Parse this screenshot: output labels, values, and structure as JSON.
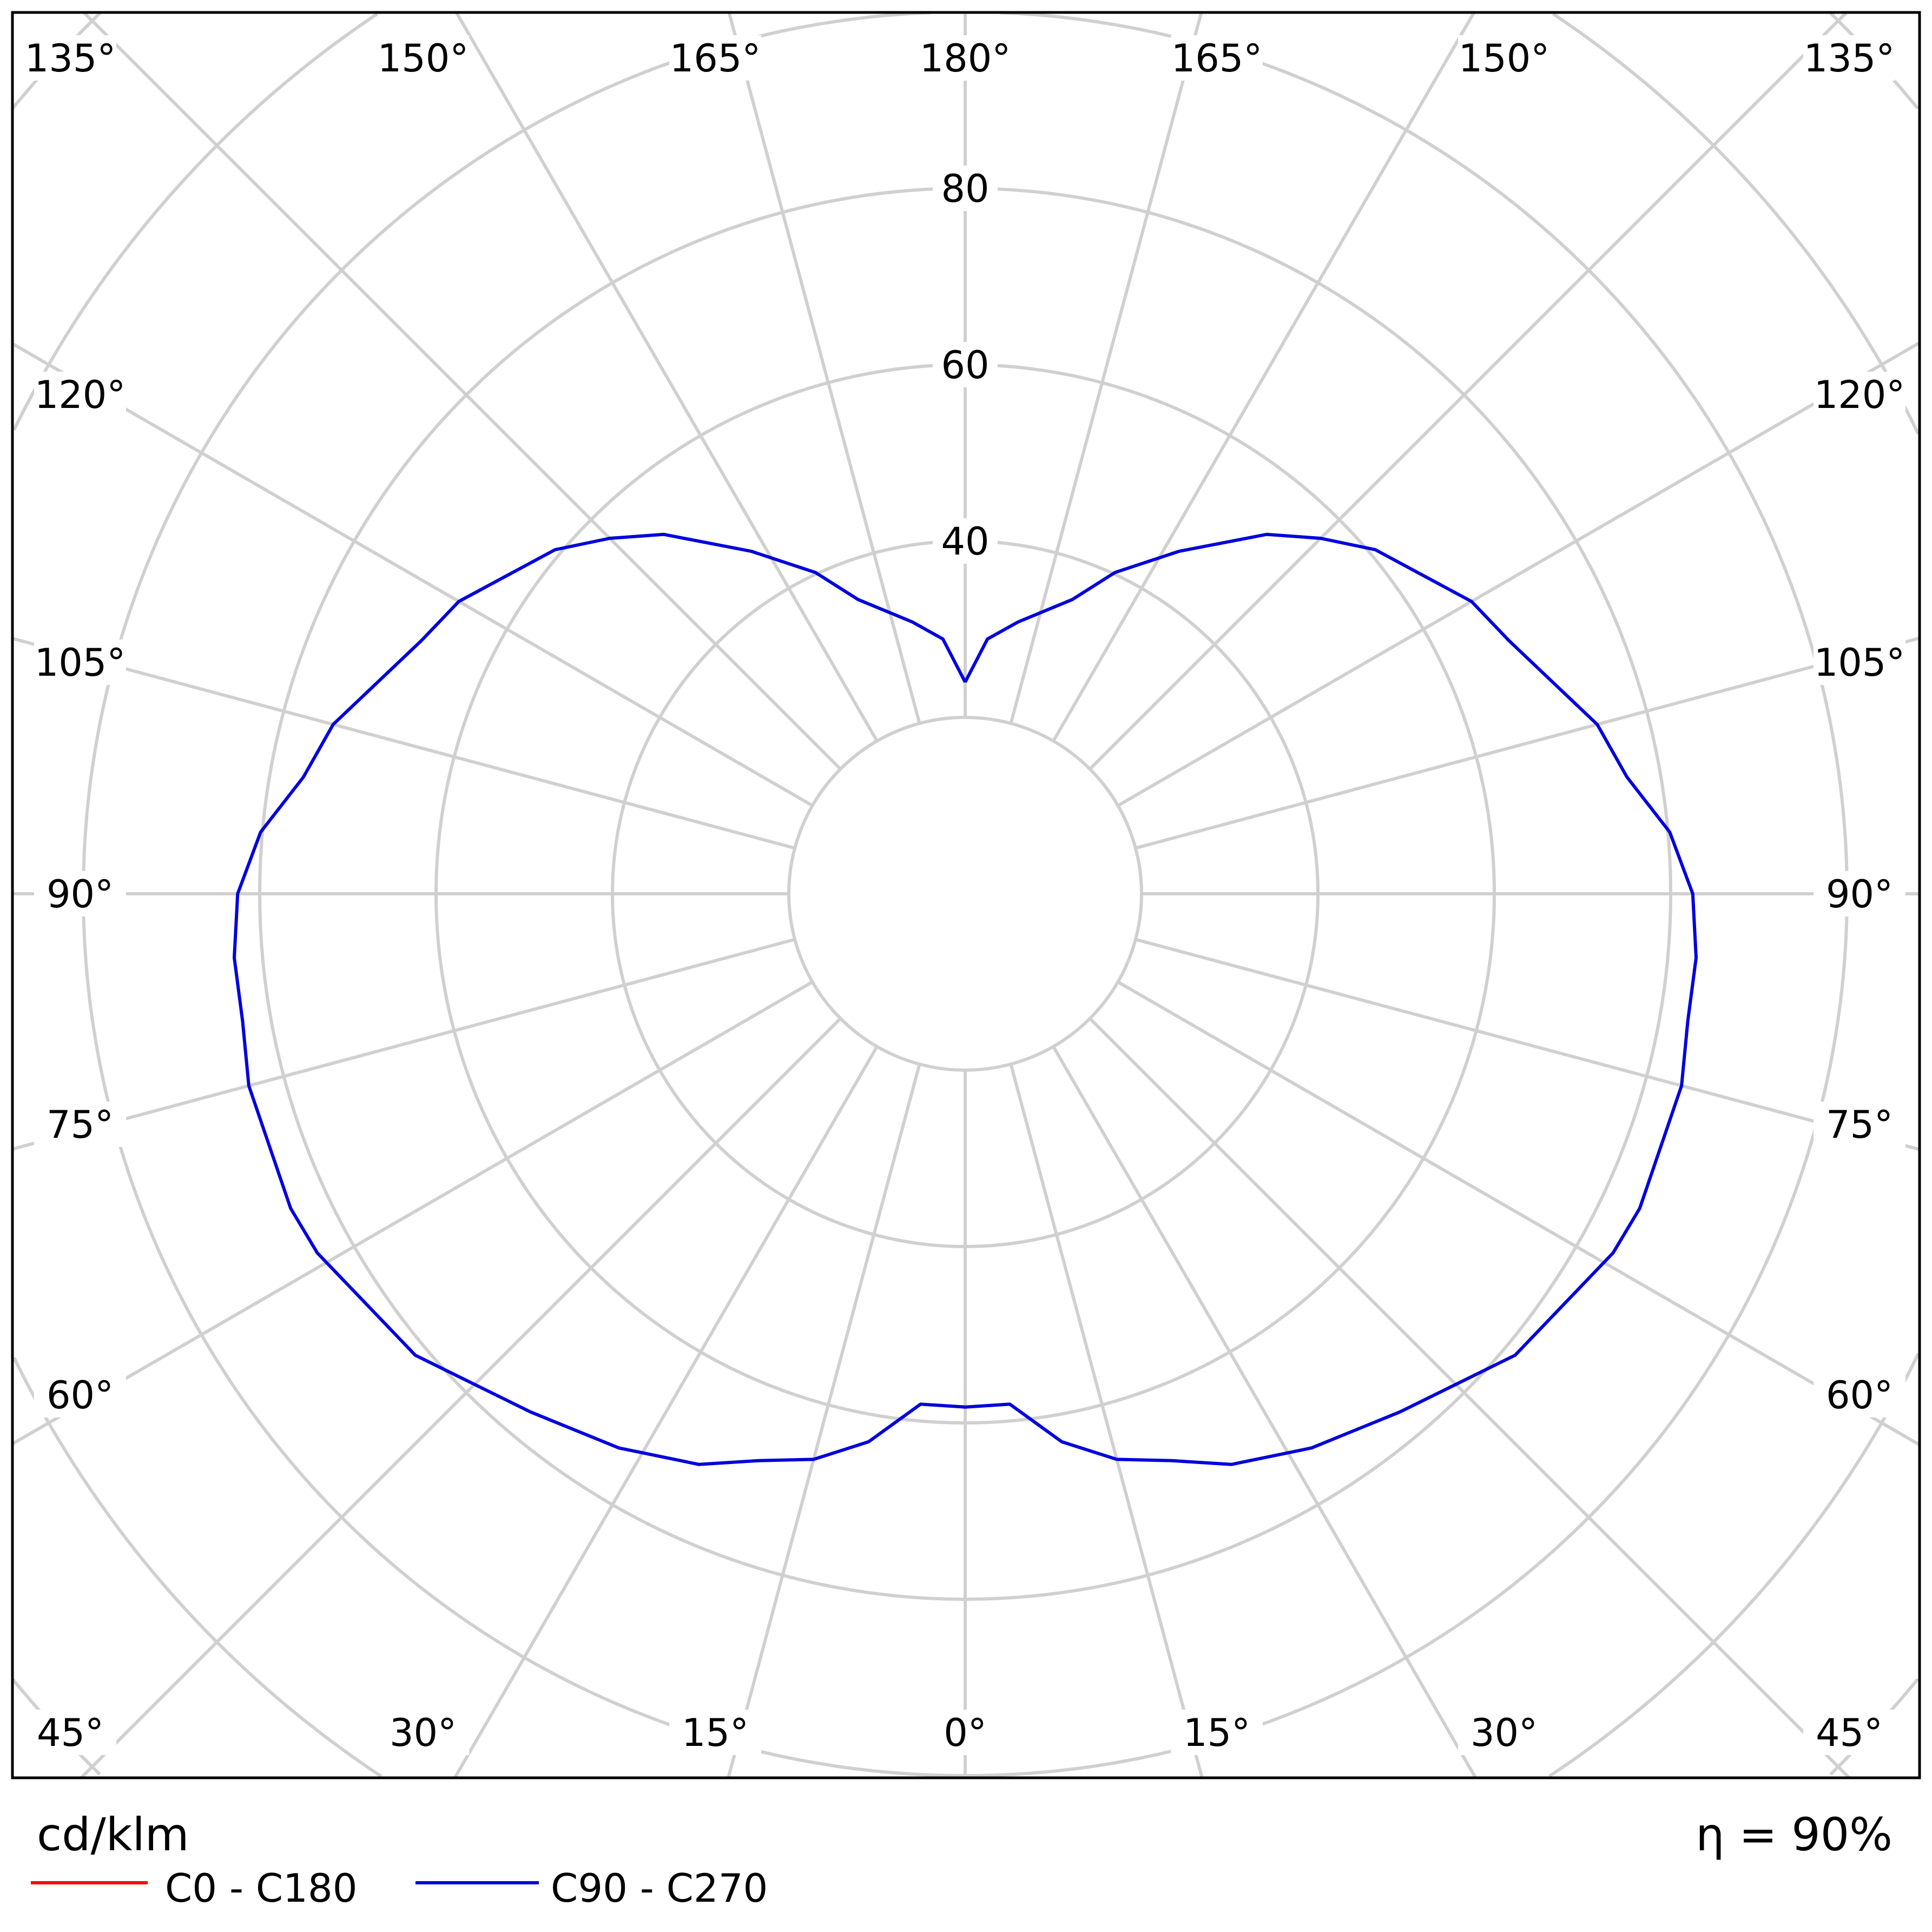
{
  "chart_data": {
    "type": "polar",
    "unit": "cd/klm",
    "efficiency": "η = 90%",
    "radial_ticks": [
      20,
      40,
      60,
      80,
      100,
      120,
      140,
      160
    ],
    "radial_tick_labels": [
      "40",
      "60",
      "80"
    ],
    "angle_labels": {
      "top": [
        "135°",
        "150°",
        "165°",
        "180°",
        "165°",
        "150°",
        "135°"
      ],
      "left": [
        "120°",
        "105°",
        "90°",
        "75°",
        "60°"
      ],
      "right": [
        "120°",
        "105°",
        "90°",
        "75°",
        "60°"
      ],
      "bottom": [
        "45°",
        "30°",
        "15°",
        "0°",
        "15°",
        "30°",
        "45°"
      ]
    },
    "grid": true,
    "legend_placement": "bottom-left",
    "series": [
      {
        "name": "C0 - C180",
        "color": "#ff0000",
        "gamma": [
          0,
          5,
          10,
          15,
          20,
          25,
          32,
          40,
          50,
          61,
          65,
          75,
          80,
          85,
          90,
          95,
          100,
          105,
          115,
          120,
          130,
          135,
          140,
          148,
          155,
          160,
          169,
          175,
          180
        ],
        "values": [
          58.2,
          58.1,
          63.1,
          66.4,
          68.4,
          71.4,
          74.1,
          76.7,
          81.4,
          84.0,
          84.4,
          84.1,
          83.2,
          83.2,
          82.5,
          80.2,
          76.2,
          74.2,
          68.0,
          66.3,
          60.7,
          57.0,
          53.2,
          45.8,
          40.2,
          35.5,
          31.4,
          29.0,
          24.0
        ]
      },
      {
        "name": "C90 - C270",
        "color": "#0000dd",
        "gamma": [
          0,
          5,
          10,
          15,
          20,
          25,
          32,
          40,
          50,
          61,
          65,
          75,
          80,
          85,
          90,
          95,
          100,
          105,
          115,
          120,
          130,
          135,
          140,
          148,
          155,
          160,
          169,
          175,
          180
        ],
        "values": [
          58.2,
          58.1,
          63.1,
          66.4,
          68.4,
          71.4,
          74.1,
          76.7,
          81.4,
          84.0,
          84.4,
          84.1,
          83.2,
          83.2,
          82.5,
          80.2,
          76.2,
          74.2,
          68.0,
          66.3,
          60.7,
          57.0,
          53.2,
          45.8,
          40.2,
          35.5,
          31.4,
          29.0,
          24.0
        ]
      }
    ]
  }
}
